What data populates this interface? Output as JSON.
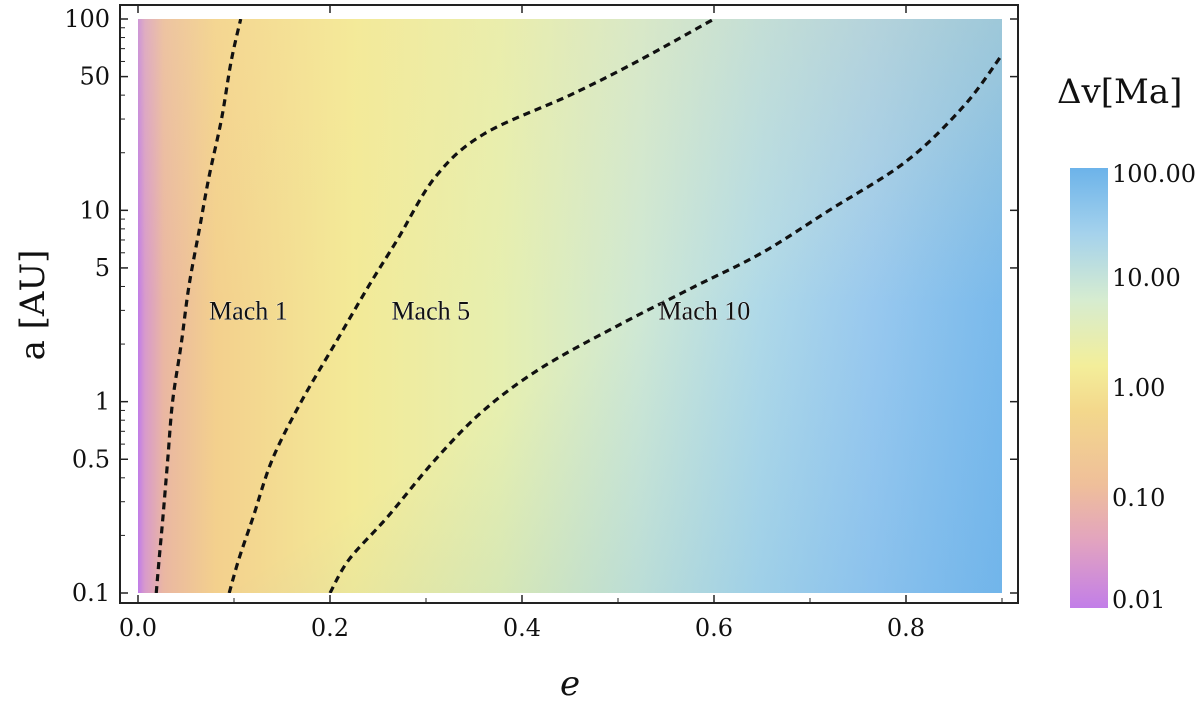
{
  "chart_data": {
    "type": "heatmap",
    "title": "",
    "xlabel": "e",
    "ylabel": "a [AU]",
    "xlim": [
      0,
      0.9
    ],
    "ylim": [
      0.1,
      100
    ],
    "y_scale": "log",
    "x_ticks": [
      {
        "value": 0.0,
        "label": "0.0"
      },
      {
        "value": 0.2,
        "label": "0.2"
      },
      {
        "value": 0.4,
        "label": "0.4"
      },
      {
        "value": 0.6,
        "label": "0.6"
      },
      {
        "value": 0.8,
        "label": "0.8"
      }
    ],
    "y_ticks": [
      {
        "value": 0.1,
        "label": "0.1"
      },
      {
        "value": 0.5,
        "label": "0.5"
      },
      {
        "value": 1,
        "label": "1"
      },
      {
        "value": 5,
        "label": "5"
      },
      {
        "value": 10,
        "label": "10"
      },
      {
        "value": 50,
        "label": "50"
      },
      {
        "value": 100,
        "label": "100"
      }
    ],
    "colorbar": {
      "title": "Δv[Ma]",
      "scale": "log",
      "range": [
        0.01,
        100
      ],
      "ticks": [
        {
          "value": 0.01,
          "label": "0.01"
        },
        {
          "value": 0.1,
          "label": "0.10"
        },
        {
          "value": 1,
          "label": "1.00"
        },
        {
          "value": 10,
          "label": "10.00"
        },
        {
          "value": 100,
          "label": "100.00"
        }
      ],
      "colors": [
        "#c27ee8",
        "#e8a9b5",
        "#f3cf8c",
        "#f1ec98",
        "#d8ebcf",
        "#a7d3ec",
        "#6fb4ea"
      ]
    },
    "contours": [
      {
        "label": "Mach 1",
        "label_at": {
          "e": 0.115,
          "a": 3.0
        },
        "points": [
          [
            0.019,
            0.1
          ],
          [
            0.022,
            0.15
          ],
          [
            0.026,
            0.25
          ],
          [
            0.031,
            0.5
          ],
          [
            0.036,
            1.0
          ],
          [
            0.045,
            2.0
          ],
          [
            0.053,
            4.0
          ],
          [
            0.064,
            8.0
          ],
          [
            0.074,
            15
          ],
          [
            0.087,
            30
          ],
          [
            0.097,
            60
          ],
          [
            0.107,
            100
          ]
        ]
      },
      {
        "label": "Mach 5",
        "label_at": {
          "e": 0.305,
          "a": 3.0
        },
        "points": [
          [
            0.095,
            0.1
          ],
          [
            0.105,
            0.15
          ],
          [
            0.12,
            0.25
          ],
          [
            0.14,
            0.5
          ],
          [
            0.17,
            1.0
          ],
          [
            0.205,
            2.0
          ],
          [
            0.24,
            4.0
          ],
          [
            0.27,
            7.0
          ],
          [
            0.31,
            15
          ],
          [
            0.36,
            25
          ],
          [
            0.45,
            40
          ],
          [
            0.52,
            60
          ],
          [
            0.6,
            100
          ]
        ]
      },
      {
        "label": "Mach 10",
        "label_at": {
          "e": 0.59,
          "a": 3.0
        },
        "points": [
          [
            0.2,
            0.1
          ],
          [
            0.22,
            0.15
          ],
          [
            0.26,
            0.25
          ],
          [
            0.31,
            0.5
          ],
          [
            0.36,
            0.9
          ],
          [
            0.42,
            1.5
          ],
          [
            0.5,
            2.5
          ],
          [
            0.58,
            4.0
          ],
          [
            0.65,
            6.0
          ],
          [
            0.72,
            10
          ],
          [
            0.8,
            18
          ],
          [
            0.86,
            35
          ],
          [
            0.9,
            65
          ]
        ]
      }
    ]
  }
}
